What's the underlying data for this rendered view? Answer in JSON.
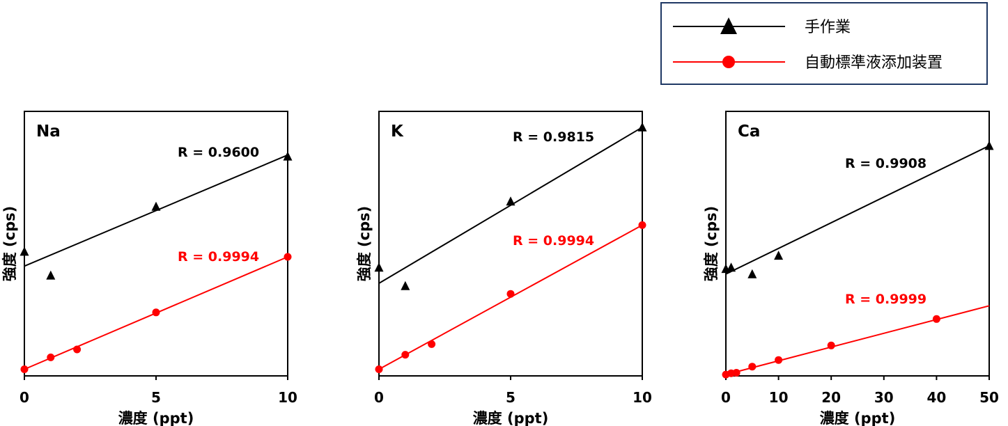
{
  "colors": {
    "manual": "#000000",
    "auto": "#ff0000",
    "legend_border": "#1f3864"
  },
  "legend": {
    "manual_label": "手作業",
    "auto_label": "自動標準液添加装置"
  },
  "chart_data": [
    {
      "type": "scatter",
      "title": "Na",
      "xlabel": "濃度 (ppt)",
      "ylabel": "強度 (cps)",
      "xlim": [
        0,
        10
      ],
      "ylim": [
        0,
        100
      ],
      "xticks": [
        "0",
        "5",
        "10"
      ],
      "yticks_shown": false,
      "grid": false,
      "series": [
        {
          "name": "手作業",
          "marker": "triangle",
          "color": "#000000",
          "r_label": "R = 0.9600",
          "x": [
            0,
            1,
            5,
            10
          ],
          "y": [
            47,
            38,
            64,
            83
          ],
          "fit": [
            41.5,
            83.5
          ]
        },
        {
          "name": "自動標準液添加装置",
          "marker": "circle",
          "color": "#ff0000",
          "r_label": "R = 0.9994",
          "x": [
            0,
            1,
            2,
            5,
            10
          ],
          "y": [
            2.5,
            7,
            10,
            24,
            45
          ],
          "fit": [
            2.5,
            45
          ]
        }
      ]
    },
    {
      "type": "scatter",
      "title": "K",
      "xlabel": "濃度 (ppt)",
      "ylabel": "強度 (cps)",
      "xlim": [
        0,
        10
      ],
      "ylim": [
        0,
        100
      ],
      "xticks": [
        "0",
        "5",
        "10"
      ],
      "yticks_shown": false,
      "grid": false,
      "series": [
        {
          "name": "手作業",
          "marker": "triangle",
          "color": "#000000",
          "r_label": "R = 0.9815",
          "x": [
            0,
            1,
            5,
            10
          ],
          "y": [
            41,
            34,
            66,
            94
          ],
          "fit": [
            35,
            94
          ]
        },
        {
          "name": "自動標準液添加装置",
          "marker": "circle",
          "color": "#ff0000",
          "r_label": "R = 0.9994",
          "x": [
            0,
            1,
            2,
            5,
            10
          ],
          "y": [
            2.5,
            8,
            12,
            31,
            57
          ],
          "fit": [
            2.5,
            57
          ]
        }
      ]
    },
    {
      "type": "scatter",
      "title": "Ca",
      "xlabel": "濃度 (ppt)",
      "ylabel": "強度 (cps)",
      "xlim": [
        0,
        50
      ],
      "ylim": [
        0,
        100
      ],
      "xticks": [
        "0",
        "10",
        "20",
        "30",
        "40",
        "50"
      ],
      "yticks_shown": false,
      "grid": false,
      "series": [
        {
          "name": "手作業",
          "marker": "triangle",
          "color": "#000000",
          "r_label": "R = 0.9908",
          "x": [
            0,
            1,
            5,
            10,
            50
          ],
          "y": [
            40.5,
            41,
            38.5,
            45.5,
            87
          ],
          "fit": [
            38.5,
            87
          ]
        },
        {
          "name": "自動標準液添加装置",
          "marker": "circle",
          "color": "#ff0000",
          "r_label": "R = 0.9999",
          "x": [
            0,
            1,
            2,
            5,
            10,
            20,
            40
          ],
          "y": [
            0.5,
            1,
            1.2,
            3.5,
            6,
            11.5,
            21.5
          ],
          "fit": [
            0.5,
            26.5
          ]
        }
      ]
    }
  ]
}
